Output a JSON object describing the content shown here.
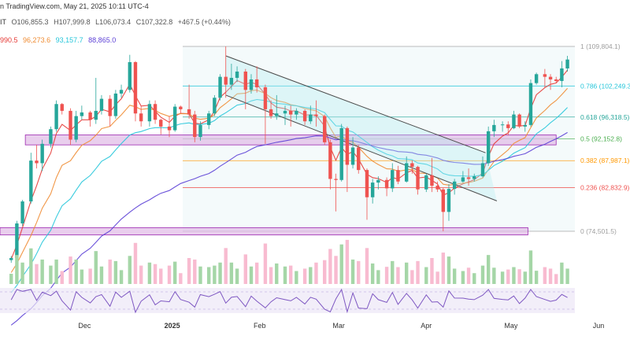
{
  "header": {
    "line1": "n TradingView.com, May 21, 2025 10:11 UTC-4",
    "line2_symbol": "IT",
    "line2_open": "O106,855.3",
    "line2_high": "H107,999.8",
    "line2_low": "L106,073.4",
    "line2_close": "C107,322.8",
    "line2_change": "+467.5 (+0.44%)",
    "ma_values": [
      "990.5",
      "96,273.6",
      "93,157.7",
      "88,865.0"
    ]
  },
  "colors": {
    "up": "#26a69a",
    "down": "#ef5350",
    "ma_fast": "#e53935",
    "ma_mid": "#ef8c33",
    "ma_slow": "#26c6da",
    "ma_long": "#5b3fd6",
    "fib_1": "#9e9e9e",
    "fib_0786": "#26c6da",
    "fib_0618": "#26a69a",
    "fib_05": "#4caf50",
    "fib_0382": "#ff9800",
    "fib_0236": "#ef5350",
    "fib_0": "#9e9e9e",
    "zone": "#9c27b0",
    "channel": "#4a4a4a"
  },
  "chart_data": {
    "type": "candlestick",
    "title": "",
    "xlabel": "",
    "ylabel": "",
    "x_ticks": [
      "Dec",
      "2025",
      "Feb",
      "Mar",
      "Apr",
      "May",
      "Jun"
    ],
    "x_ticks_bold": [
      "2025"
    ],
    "x_tick_dates": [
      "2024-12-01",
      "2025-01-01",
      "2025-02-01",
      "2025-03-01",
      "2025-04-01",
      "2025-05-01",
      "2025-06-01"
    ],
    "ylim": [
      63000,
      114000
    ],
    "fib_levels": [
      {
        "ratio": "1",
        "price": 109804.1,
        "label": "1 (109,804.1)"
      },
      {
        "ratio": "0.786",
        "price": 102249.3,
        "label": "0.786 (102,249.3)"
      },
      {
        "ratio": "0.618",
        "price": 96318.5,
        "label": "0.618 (96,318.5)"
      },
      {
        "ratio": "0.5",
        "price": 92152.8,
        "label": "0.5 (92,152.8)"
      },
      {
        "ratio": "0.382",
        "price": 87987.1,
        "label": "0.382 (87,987.1)"
      },
      {
        "ratio": "0.236",
        "price": 82832.9,
        "label": "0.236 (82,832.9)"
      },
      {
        "ratio": "0",
        "price": 74501.5,
        "label": "0 (74,501.5)"
      }
    ],
    "zones": [
      {
        "date_from": "2024-11-10",
        "date_to": "2025-05-17",
        "low": 91000,
        "high": 92900
      },
      {
        "date_from": "2024-10-01",
        "date_to": "2025-05-07",
        "low": 73800,
        "high": 75200
      }
    ],
    "channel": {
      "upper": [
        [
          "2025-01-20",
          108000
        ],
        [
          "2025-04-22",
          89500
        ]
      ],
      "lower": [
        [
          "2025-01-20",
          100500
        ],
        [
          "2025-04-26",
          80300
        ]
      ]
    },
    "candles": [
      [
        "2024-11-05",
        69000,
        69800,
        68500,
        69400
      ],
      [
        "2024-11-07",
        69400,
        76500,
        69000,
        76000
      ],
      [
        "2024-11-09",
        76000,
        80500,
        75500,
        80200
      ],
      [
        "2024-11-12",
        80200,
        89500,
        79800,
        88000
      ],
      [
        "2024-11-14",
        88000,
        91000,
        86500,
        87500
      ],
      [
        "2024-11-16",
        87500,
        92000,
        86000,
        91200
      ],
      [
        "2024-11-19",
        91200,
        94500,
        90500,
        94000
      ],
      [
        "2024-11-21",
        94000,
        99500,
        93500,
        98800
      ],
      [
        "2024-11-23",
        98800,
        99000,
        96800,
        97500
      ],
      [
        "2024-11-26",
        97500,
        98000,
        91000,
        92000
      ],
      [
        "2024-11-28",
        92000,
        97500,
        91500,
        96500
      ],
      [
        "2024-11-30",
        96500,
        98500,
        95800,
        97200
      ],
      [
        "2024-12-03",
        97200,
        97500,
        94500,
        95800
      ],
      [
        "2024-12-05",
        95800,
        103800,
        95000,
        97500
      ],
      [
        "2024-12-07",
        97500,
        100500,
        96800,
        99800
      ],
      [
        "2024-12-10",
        99800,
        100500,
        94500,
        96500
      ],
      [
        "2024-12-12",
        96500,
        101500,
        96000,
        100800
      ],
      [
        "2024-12-14",
        100800,
        102500,
        100000,
        101500
      ],
      [
        "2024-12-17",
        101500,
        108200,
        101000,
        106800
      ],
      [
        "2024-12-19",
        106800,
        107000,
        95500,
        97000
      ],
      [
        "2024-12-21",
        97000,
        98500,
        94500,
        95500
      ],
      [
        "2024-12-24",
        95500,
        99500,
        94500,
        98800
      ],
      [
        "2024-12-26",
        98800,
        99500,
        95000,
        95800
      ],
      [
        "2024-12-28",
        95800,
        96000,
        93000,
        94500
      ],
      [
        "2024-12-31",
        94500,
        96500,
        92500,
        93800
      ],
      [
        "2025-01-02",
        93800,
        98800,
        93500,
        98300
      ],
      [
        "2025-01-04",
        98300,
        98500,
        97000,
        97800
      ],
      [
        "2025-01-07",
        97800,
        102500,
        96000,
        96800
      ],
      [
        "2025-01-09",
        96800,
        97500,
        91500,
        92500
      ],
      [
        "2025-01-11",
        92500,
        95500,
        91800,
        94800
      ],
      [
        "2025-01-14",
        94800,
        97500,
        94000,
        97000
      ],
      [
        "2025-01-16",
        97000,
        100500,
        96500,
        100000
      ],
      [
        "2025-01-18",
        100000,
        104500,
        99500,
        104000
      ],
      [
        "2025-01-20",
        104000,
        109800,
        100000,
        102500
      ],
      [
        "2025-01-22",
        102500,
        106500,
        101500,
        103800
      ],
      [
        "2025-01-24",
        103800,
        106000,
        103000,
        105000
      ],
      [
        "2025-01-27",
        105000,
        105500,
        97800,
        101500
      ],
      [
        "2025-01-29",
        101500,
        104500,
        100800,
        103500
      ],
      [
        "2025-01-31",
        103500,
        106000,
        101000,
        102000
      ],
      [
        "2025-02-03",
        102000,
        102500,
        91200,
        97800
      ],
      [
        "2025-02-05",
        97800,
        99500,
        96000,
        96500
      ],
      [
        "2025-02-07",
        96500,
        100500,
        95800,
        97000
      ],
      [
        "2025-02-10",
        97000,
        98500,
        94800,
        97500
      ],
      [
        "2025-02-12",
        97500,
        98500,
        94500,
        96800
      ],
      [
        "2025-02-14",
        96800,
        98000,
        95800,
        97500
      ],
      [
        "2025-02-17",
        97500,
        97800,
        94800,
        95500
      ],
      [
        "2025-02-19",
        95500,
        98500,
        95000,
        96800
      ],
      [
        "2025-02-21",
        96800,
        99500,
        94500,
        96500
      ],
      [
        "2025-02-24",
        96500,
        96800,
        91000,
        91500
      ],
      [
        "2025-02-26",
        91500,
        92000,
        82500,
        84500
      ],
      [
        "2025-02-28",
        84500,
        85500,
        78300,
        84300
      ],
      [
        "2025-03-02",
        84300,
        95000,
        84000,
        94200
      ],
      [
        "2025-03-04",
        94200,
        94500,
        82000,
        87200
      ],
      [
        "2025-03-06",
        87200,
        92500,
        86500,
        90500
      ],
      [
        "2025-03-08",
        90500,
        91000,
        85500,
        86200
      ],
      [
        "2025-03-11",
        86200,
        86500,
        76700,
        81000
      ],
      [
        "2025-03-13",
        81000,
        84500,
        79800,
        83800
      ],
      [
        "2025-03-15",
        83800,
        85000,
        82500,
        84300
      ],
      [
        "2025-03-18",
        84300,
        84800,
        81200,
        82700
      ],
      [
        "2025-03-20",
        82700,
        87500,
        82000,
        86200
      ],
      [
        "2025-03-22",
        86200,
        87000,
        83500,
        84000
      ],
      [
        "2025-03-25",
        84000,
        88800,
        83800,
        87500
      ],
      [
        "2025-03-27",
        87500,
        88000,
        85500,
        86800
      ],
      [
        "2025-03-29",
        86800,
        87000,
        81500,
        82500
      ],
      [
        "2025-04-01",
        82500,
        85500,
        82000,
        85200
      ],
      [
        "2025-04-03",
        85200,
        88500,
        82000,
        83200
      ],
      [
        "2025-04-05",
        83200,
        84000,
        82000,
        82500
      ],
      [
        "2025-04-07",
        82500,
        82800,
        74500,
        78200
      ],
      [
        "2025-04-09",
        78200,
        83500,
        76500,
        82600
      ],
      [
        "2025-04-11",
        82600,
        84500,
        81500,
        84000
      ],
      [
        "2025-04-14",
        84000,
        86000,
        83800,
        84800
      ],
      [
        "2025-04-16",
        84800,
        86500,
        83200,
        84500
      ],
      [
        "2025-04-18",
        84500,
        85500,
        84000,
        85000
      ],
      [
        "2025-04-21",
        85000,
        88800,
        84800,
        87500
      ],
      [
        "2025-04-23",
        87500,
        94500,
        87000,
        93600
      ],
      [
        "2025-04-25",
        93600,
        95800,
        92500,
        94800
      ],
      [
        "2025-04-28",
        94800,
        95500,
        93500,
        94900
      ],
      [
        "2025-04-30",
        94900,
        95500,
        92800,
        94200
      ],
      [
        "2025-05-02",
        94200,
        97500,
        94000,
        96800
      ],
      [
        "2025-05-04",
        96800,
        97000,
        94200,
        94500
      ],
      [
        "2025-05-06",
        94500,
        95500,
        93500,
        94800
      ],
      [
        "2025-05-08",
        94800,
        103500,
        94500,
        102800
      ],
      [
        "2025-05-10",
        102800,
        104800,
        102500,
        104500
      ],
      [
        "2025-05-13",
        104500,
        105500,
        102000,
        104000
      ],
      [
        "2025-05-15",
        104000,
        104500,
        101500,
        103500
      ],
      [
        "2025-05-17",
        103500,
        104000,
        102800,
        103200
      ],
      [
        "2025-05-19",
        103200,
        107000,
        102000,
        105600
      ],
      [
        "2025-05-21",
        105600,
        108000,
        105000,
        107300
      ]
    ],
    "volume_peaks_desc": "relative volume bars, values unlabeled",
    "rsi_present": true
  },
  "footer": {}
}
